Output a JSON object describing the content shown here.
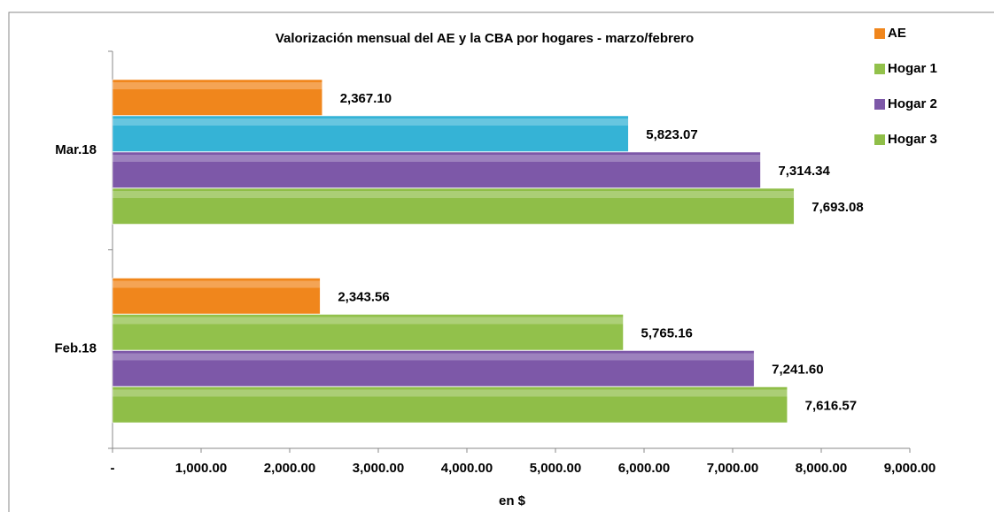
{
  "chart_data": {
    "type": "hbar",
    "title": "Valorización mensual del AE y la CBA por hogares - marzo/febrero",
    "xlabel": "en $",
    "categories": [
      "Mar.18",
      "Feb.18"
    ],
    "series": [
      {
        "name": "AE",
        "color": "#f0861c",
        "values": [
          2367.1,
          2343.56
        ],
        "value_labels": [
          "2,367.10",
          "2,343.56"
        ]
      },
      {
        "name": "Hogar 1",
        "color": "#92c14b",
        "colors": [
          "#35b3d6",
          "#92c14b"
        ],
        "values": [
          5823.07,
          5765.16
        ],
        "value_labels": [
          "5,823.07",
          "5,765.16"
        ]
      },
      {
        "name": "Hogar 2",
        "color": "#7d58a8",
        "values": [
          7314.34,
          7241.6
        ],
        "value_labels": [
          "7,314.34",
          "7,241.60"
        ]
      },
      {
        "name": "Hogar 3",
        "color": "#8fbe48",
        "values": [
          7693.08,
          7616.57
        ],
        "value_labels": [
          "7,693.08",
          "7,616.57"
        ]
      }
    ],
    "xlim": [
      0,
      9000
    ],
    "xticks": [
      {
        "value": 0,
        "label": "-"
      },
      {
        "value": 1000,
        "label": "1,000.00"
      },
      {
        "value": 2000,
        "label": "2,000.00"
      },
      {
        "value": 3000,
        "label": "3,000.00"
      },
      {
        "value": 4000,
        "label": "4,000.00"
      },
      {
        "value": 5000,
        "label": "5,000.00"
      },
      {
        "value": 6000,
        "label": "6,000.00"
      },
      {
        "value": 7000,
        "label": "7,000.00"
      },
      {
        "value": 8000,
        "label": "8,000.00"
      },
      {
        "value": 9000,
        "label": "9,000.00"
      }
    ],
    "legend": "right"
  }
}
